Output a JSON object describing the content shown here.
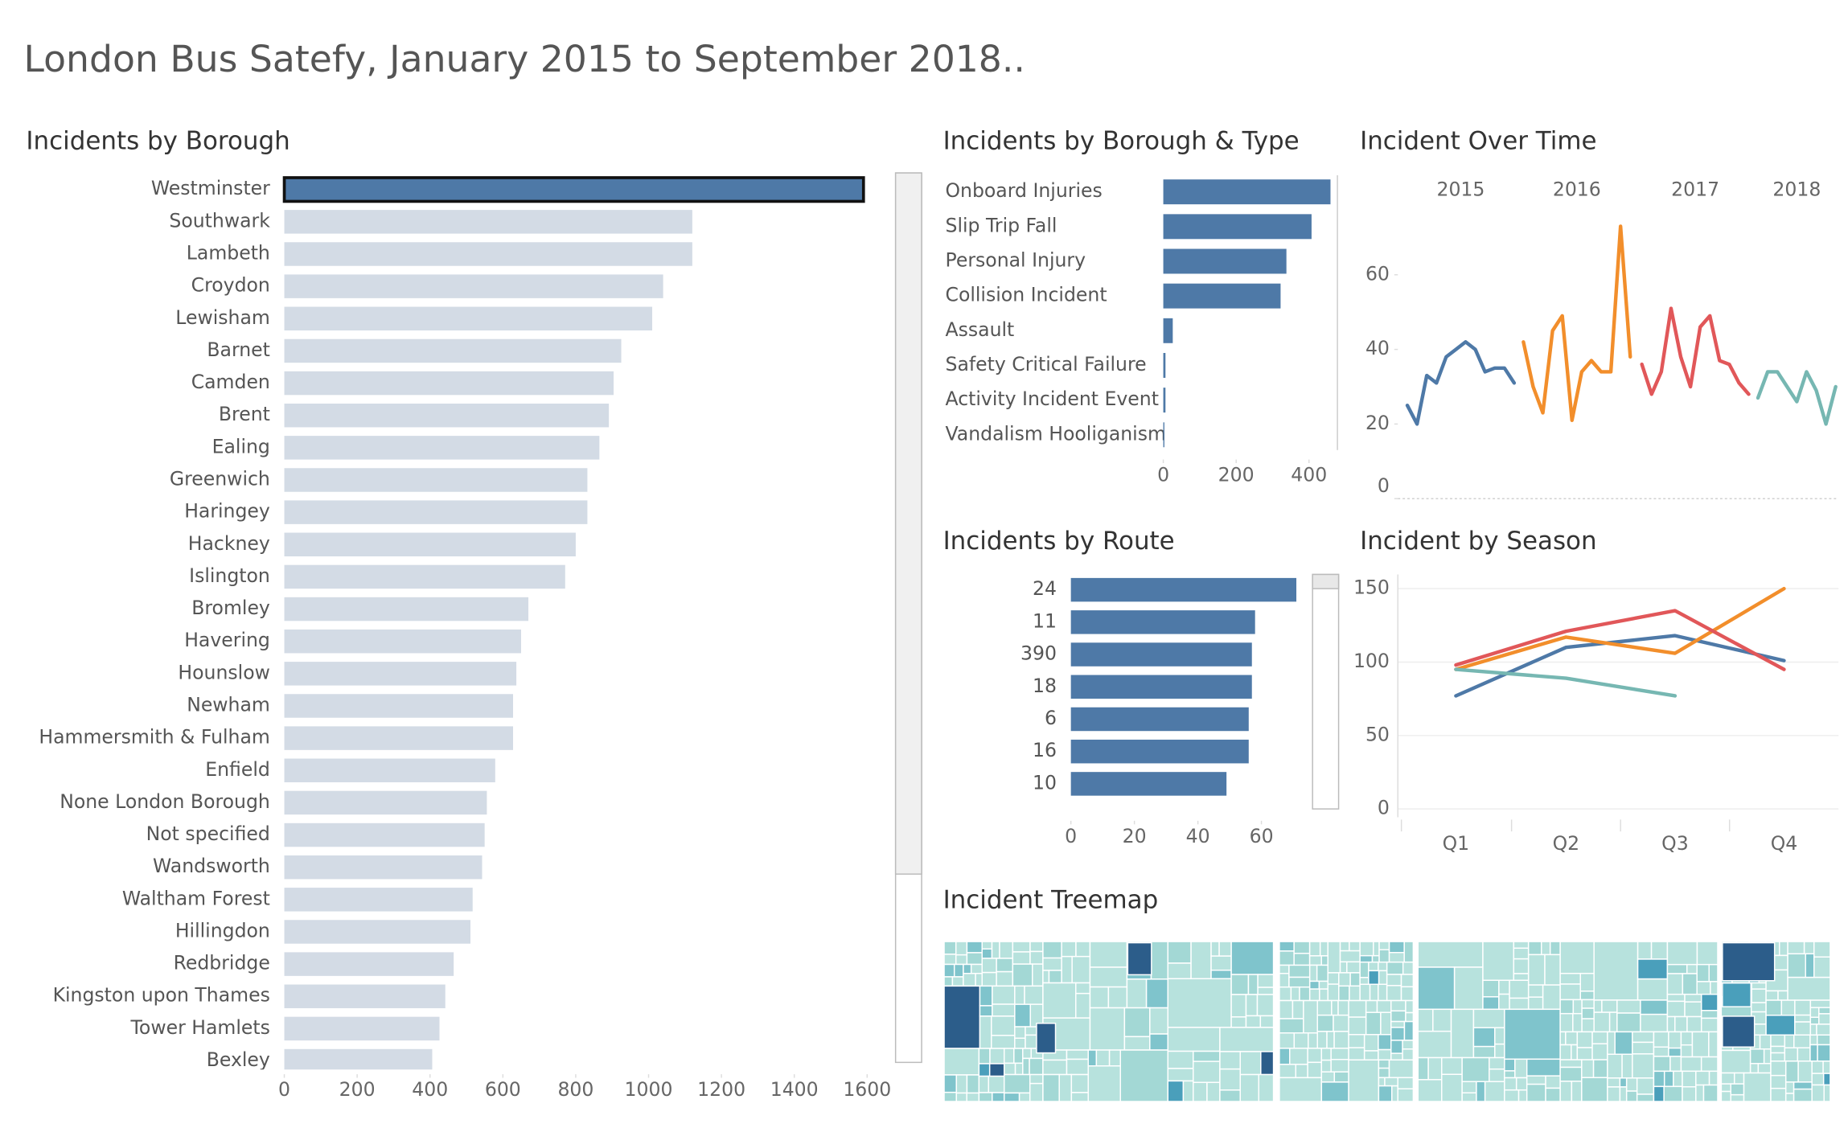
{
  "title": "London Bus Satefy, January 2015 to September 2018..",
  "chart_data": [
    {
      "type": "hbar",
      "title": "Incidents by Borough",
      "categories": [
        "Westminster",
        "Southwark",
        "Lambeth",
        "Croydon",
        "Lewisham",
        "Barnet",
        "Camden",
        "Brent",
        "Ealing",
        "Greenwich",
        "Haringey",
        "Hackney",
        "Islington",
        "Bromley",
        "Havering",
        "Hounslow",
        "Newham",
        "Hammersmith & Fulham",
        "Enfield",
        "None London Borough",
        "Not specified",
        "Wandsworth",
        "Waltham Forest",
        "Hillingdon",
        "Redbridge",
        "Kingston upon Thames",
        "Tower Hamlets",
        "Bexley"
      ],
      "values": [
        1590,
        1120,
        1120,
        1040,
        1010,
        925,
        904,
        891,
        865,
        832,
        832,
        800,
        771,
        670,
        650,
        637,
        628,
        628,
        579,
        556,
        550,
        543,
        517,
        511,
        465,
        442,
        426,
        406
      ],
      "color": "#d3dbe5",
      "highlight": "Westminster",
      "highlight_color": "#4e79a7",
      "xlim": [
        0,
        1600
      ],
      "xticks": [
        0,
        200,
        400,
        600,
        800,
        1000,
        1200,
        1400,
        1600
      ]
    },
    {
      "type": "hbar",
      "title": "Incidents by Borough & Type",
      "categories": [
        "Onboard Injuries",
        "Slip Trip Fall",
        "Personal Injury",
        "Collision Incident",
        "Assault",
        "Safety Critical Failure",
        "Activity Incident Event",
        "Vandalism Hooliganism"
      ],
      "values": [
        459,
        407,
        338,
        322,
        26,
        6,
        6,
        3
      ],
      "color": "#4e79a7",
      "xlim": [
        0,
        480
      ],
      "xticks": [
        0,
        200,
        400
      ]
    },
    {
      "type": "line",
      "title": "Incident Over Time",
      "series": [
        {
          "name": "2015",
          "color": "#4e79a7",
          "values": [
            25,
            20,
            33,
            31,
            38,
            40,
            42,
            40,
            34,
            35,
            35,
            31
          ]
        },
        {
          "name": "2016",
          "color": "#f28e2b",
          "values": [
            42,
            30,
            23,
            45,
            49,
            21,
            34,
            37,
            34,
            34,
            73,
            38
          ]
        },
        {
          "name": "2017",
          "color": "#e15759",
          "values": [
            36,
            28,
            34,
            51,
            38,
            30,
            46,
            49,
            37,
            36,
            31,
            28
          ]
        },
        {
          "name": "2018",
          "color": "#76b7b2",
          "values": [
            27,
            34,
            34,
            30,
            26,
            34,
            29,
            20,
            30
          ]
        }
      ],
      "ylim": [
        0,
        76
      ],
      "yticks": [
        0,
        20,
        40,
        60
      ]
    },
    {
      "type": "hbar",
      "title": "Incidents by Route",
      "categories": [
        "24",
        "11",
        "390",
        "18",
        "6",
        "16",
        "10"
      ],
      "values": [
        71,
        58,
        57,
        57,
        56,
        56,
        49
      ],
      "color": "#4e79a7",
      "xlim": [
        0,
        72
      ],
      "xticks": [
        0,
        20,
        40,
        60
      ]
    },
    {
      "type": "quarter-line",
      "title": "Incident by Season",
      "categories": [
        "Q1",
        "Q2",
        "Q3",
        "Q4"
      ],
      "series": [
        {
          "color": "#4e79a7",
          "values": [
            77,
            110,
            118,
            101
          ]
        },
        {
          "color": "#f28e2b",
          "values": [
            95,
            117,
            106,
            150
          ]
        },
        {
          "color": "#e15759",
          "values": [
            98,
            121,
            135,
            95
          ]
        },
        {
          "color": "#76b7b2",
          "values": [
            95,
            89,
            77,
            null
          ]
        }
      ],
      "ylim": [
        0,
        160
      ],
      "yticks": [
        0,
        50,
        100,
        150
      ],
      "grid": true
    },
    {
      "type": "treemap",
      "title": "Incident Treemap",
      "colors": [
        "#b7e2dd",
        "#a3d8d5",
        "#7fc4cc",
        "#4a9fbb",
        "#2c5d8a"
      ]
    }
  ]
}
